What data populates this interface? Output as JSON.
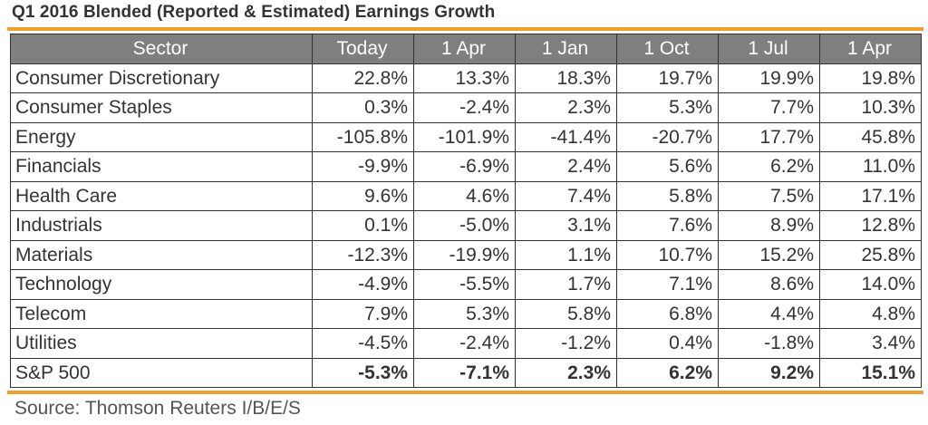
{
  "title": "Q1 2016 Blended (Reported & Estimated) Earnings Growth",
  "accent_color": "#f0a030",
  "header_color": "#7f7f7f",
  "table": {
    "headers": [
      "Sector",
      "Today",
      "1 Apr",
      "1 Jan",
      "1 Oct",
      "1 Jul",
      "1 Apr"
    ],
    "rows": [
      {
        "sector": "Consumer Discretionary",
        "values": [
          "22.8%",
          "13.3%",
          "18.3%",
          "19.7%",
          "19.9%",
          "19.8%"
        ]
      },
      {
        "sector": "Consumer Staples",
        "values": [
          "0.3%",
          "-2.4%",
          "2.3%",
          "5.3%",
          "7.7%",
          "10.3%"
        ]
      },
      {
        "sector": "Energy",
        "values": [
          "-105.8%",
          "-101.9%",
          "-41.4%",
          "-20.7%",
          "17.7%",
          "45.8%"
        ]
      },
      {
        "sector": "Financials",
        "values": [
          "-9.9%",
          "-6.9%",
          "2.4%",
          "5.6%",
          "6.2%",
          "11.0%"
        ]
      },
      {
        "sector": "Health Care",
        "values": [
          "9.6%",
          "4.6%",
          "7.4%",
          "5.8%",
          "7.5%",
          "17.1%"
        ]
      },
      {
        "sector": "Industrials",
        "values": [
          "0.1%",
          "-5.0%",
          "3.1%",
          "7.6%",
          "8.9%",
          "12.8%"
        ]
      },
      {
        "sector": "Materials",
        "values": [
          "-12.3%",
          "-19.9%",
          "1.1%",
          "10.7%",
          "15.2%",
          "25.8%"
        ]
      },
      {
        "sector": "Technology",
        "values": [
          "-4.9%",
          "-5.5%",
          "1.7%",
          "7.1%",
          "8.6%",
          "14.0%"
        ]
      },
      {
        "sector": "Telecom",
        "values": [
          "7.9%",
          "5.3%",
          "5.8%",
          "6.8%",
          "4.4%",
          "4.8%"
        ]
      },
      {
        "sector": "Utilities",
        "values": [
          "-4.5%",
          "-2.4%",
          "-1.2%",
          "0.4%",
          "-1.8%",
          "3.4%"
        ]
      },
      {
        "sector": "S&P 500",
        "values": [
          "-5.3%",
          "-7.1%",
          "2.3%",
          "6.2%",
          "9.2%",
          "15.1%"
        ],
        "total": true
      }
    ]
  },
  "source": "Source: Thomson Reuters I/B/E/S"
}
